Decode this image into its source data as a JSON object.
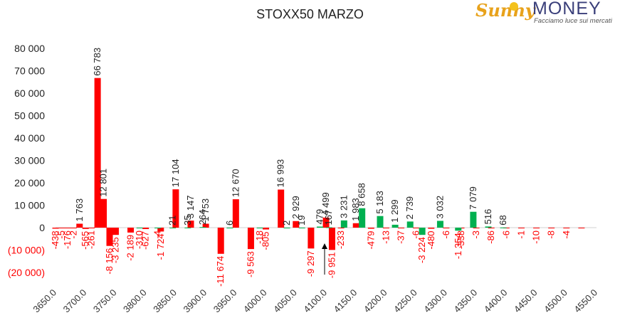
{
  "header": {
    "title": "STOXX50 MARZO"
  },
  "logo": {
    "brand_sunny": "Sunny",
    "brand_money": "MONEY",
    "tagline": "Facciamo luce sui mercati"
  },
  "chart_data": {
    "type": "bar",
    "title": "STOXX50 MARZO",
    "y_ticks": [
      "80 000",
      "70 000",
      "60 000",
      "50 000",
      "40 000",
      "30 000",
      "20 000",
      "10 000",
      "0",
      "(10 000)",
      "(20 000)"
    ],
    "ylim": [
      -20000,
      80000
    ],
    "x_ticks": [
      "3650.0",
      "3700.0",
      "3750.0",
      "3800.0",
      "3850.0",
      "3900.0",
      "3950.0",
      "4000.0",
      "4050.0",
      "4100.0",
      "4150.0",
      "4200.0",
      "4250.0",
      "4300.0",
      "4350.0",
      "4400.0",
      "4450.0",
      "4500.0",
      "4550.0"
    ],
    "x_range": [
      3650,
      4550
    ],
    "colors": {
      "red": "#ff0000",
      "green": "#00b050",
      "neg_label": "#ff0000",
      "pos_label": "#222222"
    },
    "series": [
      {
        "color_key": "red",
        "x": [
          3650,
          3660,
          3670,
          3680,
          3690,
          3700,
          3710,
          3720,
          3730,
          3740,
          3750,
          3775,
          3800,
          3825,
          3850,
          3875,
          3900,
          3925,
          3950,
          3975,
          4000,
          4025,
          4050,
          4075,
          4100,
          4110,
          4125,
          4150,
          4175,
          4200,
          4225,
          4250,
          4275,
          4300,
          4325,
          4350,
          4375,
          4400,
          4425,
          4450,
          4475,
          4500,
          4525,
          4550
        ],
        "values": [
          -438,
          -5,
          -176,
          -2,
          1763,
          -565,
          -261,
          66783,
          12801,
          -8156,
          -3235,
          -2189,
          -627,
          -1724,
          17104,
          3147,
          1753,
          -11674,
          12670,
          -9563,
          -805,
          16993,
          2929,
          -9297,
          4499,
          -9951,
          -233,
          1983,
          -479,
          -13,
          -37,
          -6,
          -480,
          -6,
          -338,
          -3,
          -86,
          -6,
          -1,
          -10,
          -8,
          -4,
          -1,
          0
        ],
        "labels": [
          "-438",
          "-5",
          "-176",
          "-2",
          "1 763",
          "-565",
          "-261",
          "66 783",
          "12 801",
          "-8 156",
          "-3 235",
          "-2 189",
          "-627",
          "-1 724",
          "17 104",
          "3 147",
          "1 753",
          "-11 674",
          "12 670",
          "-9 563",
          "-805",
          "16 993",
          "2 929",
          "-9 297",
          "4 499",
          "-9 951",
          "-233",
          "1 983",
          "-479",
          "-13",
          "-37",
          "-6",
          "-480",
          "-6",
          "-338",
          "-3",
          "-86",
          "-6",
          "-1",
          "-10",
          "-8",
          "-4",
          "",
          ""
        ]
      },
      {
        "color_key": "green",
        "x": [
          3790,
          3820,
          3845,
          3870,
          3895,
          3940,
          3990,
          4035,
          4060,
          4090,
          4105,
          4130,
          4160,
          4190,
          4215,
          4240,
          4260,
          4290,
          4320,
          4345,
          4370,
          4395
        ],
        "values": [
          -310,
          -4,
          21,
          35,
          264,
          6,
          -18,
          2,
          19,
          479,
          167,
          3231,
          8658,
          5183,
          1299,
          2739,
          -3224,
          3032,
          -1354,
          7079,
          516,
          68
        ],
        "labels": [
          "-310",
          "-4",
          "21",
          "35",
          "264",
          "6",
          "-18",
          "2",
          "19",
          "479",
          "167",
          "3 231",
          "8 658",
          "5 183",
          "1 299",
          "2 739",
          "-3 224",
          "3 032",
          "-1 354",
          "7 079",
          "516",
          "68"
        ]
      }
    ],
    "annotations": [
      {
        "type": "arrow",
        "x": 4100,
        "label": ""
      }
    ]
  }
}
